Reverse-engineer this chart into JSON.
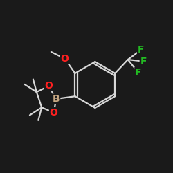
{
  "background_color": "#1a1a1a",
  "bond_color": "#d8d8d8",
  "atom_colors": {
    "O": "#ff2020",
    "B": "#c8a882",
    "F": "#22bb22",
    "C": "#d8d8d8"
  },
  "bond_width": 1.6,
  "font_size": 10,
  "figsize": [
    2.5,
    2.5
  ],
  "dpi": 100
}
